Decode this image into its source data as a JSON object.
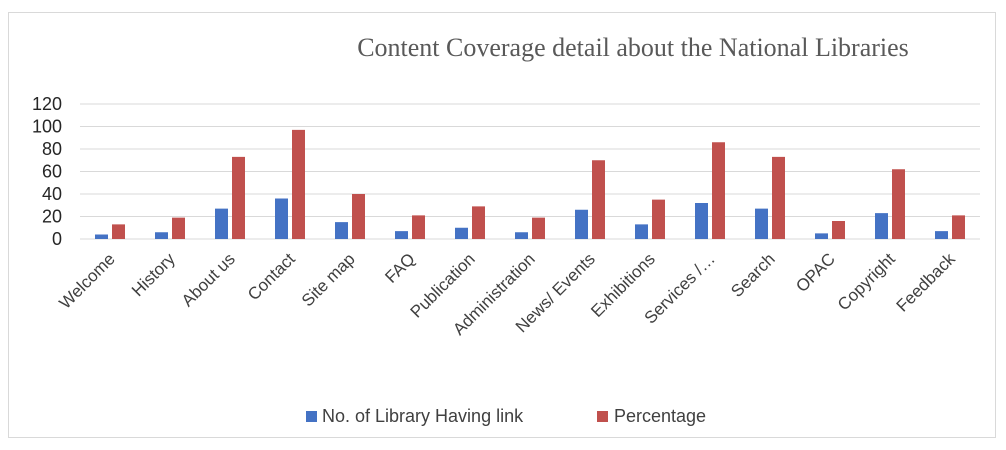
{
  "chart_data": {
    "type": "bar",
    "title": "Content Coverage detail about the National Libraries",
    "categories": [
      "Welcome",
      "History",
      "About us",
      "Contact",
      "Site map",
      "FAQ",
      "Publication",
      "Administration",
      "News/ Events",
      "Exhibitions",
      "Services /…",
      "Search",
      "OPAC",
      "Copyright",
      "Feedback"
    ],
    "series": [
      {
        "name": "No. of Library Having link",
        "color": "#4472c4",
        "values": [
          4,
          6,
          27,
          36,
          15,
          7,
          10,
          6,
          26,
          13,
          32,
          27,
          5,
          23,
          7
        ]
      },
      {
        "name": "Percentage",
        "color": "#c0504d",
        "values": [
          13,
          19,
          73,
          97,
          40,
          21,
          29,
          19,
          70,
          35,
          86,
          73,
          16,
          62,
          21
        ]
      }
    ],
    "ylim": [
      0,
      120
    ],
    "yticks": [
      "0",
      "20",
      "40",
      "60",
      "80",
      "100",
      "120"
    ],
    "grid": true,
    "legend_position": "bottom"
  }
}
